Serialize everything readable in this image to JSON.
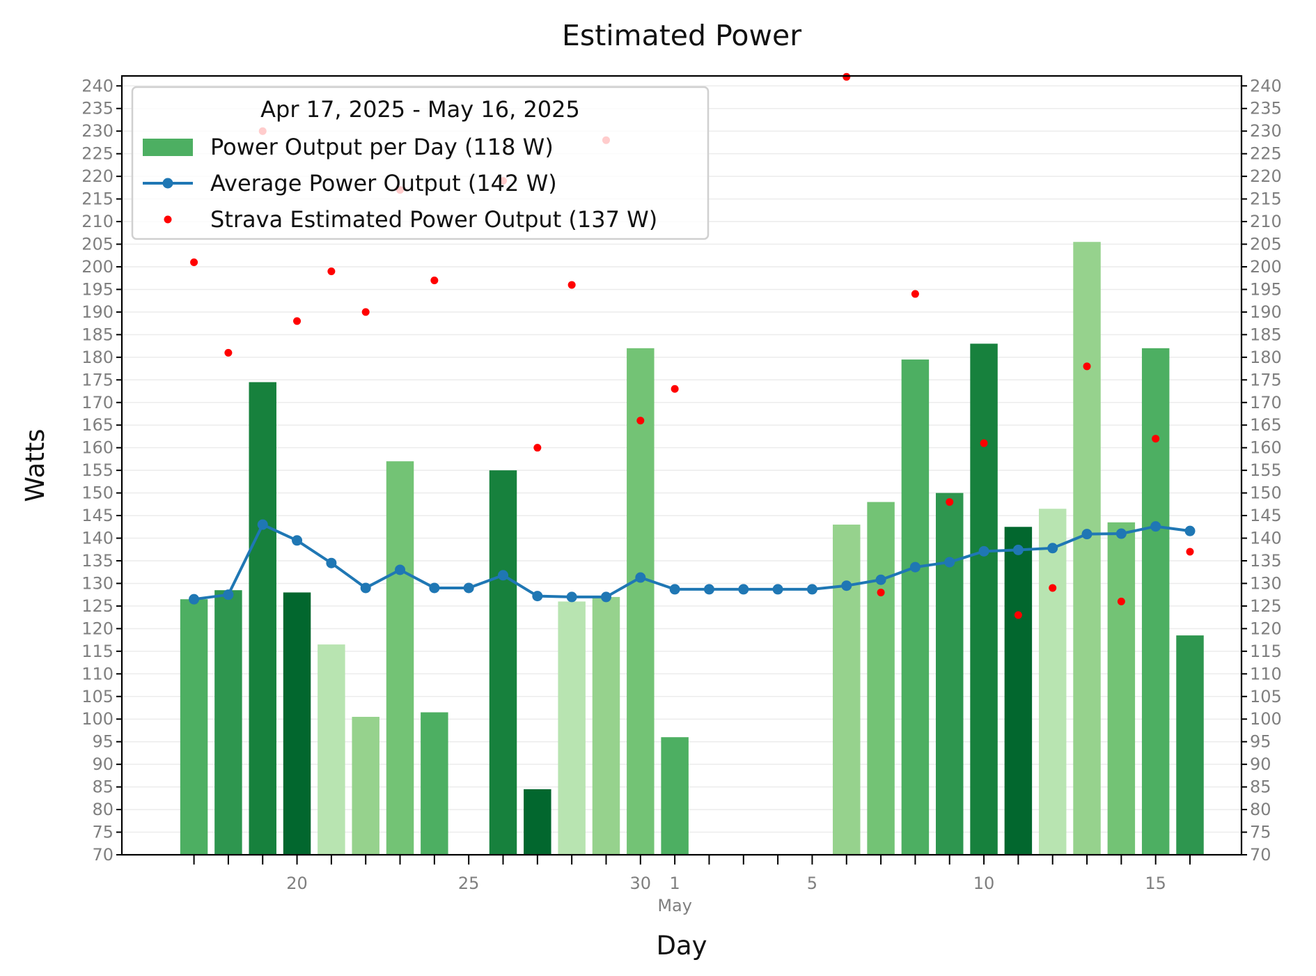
{
  "chart_data": {
    "type": "bar",
    "title": "Estimated Power",
    "xlabel": "Day",
    "ylabel": "Watts",
    "ylim": [
      70,
      240
    ],
    "yticks": [
      70,
      75,
      80,
      85,
      90,
      95,
      100,
      105,
      110,
      115,
      120,
      125,
      130,
      135,
      140,
      145,
      150,
      155,
      160,
      165,
      170,
      175,
      180,
      185,
      190,
      195,
      200,
      205,
      210,
      215,
      220,
      225,
      230,
      235,
      240
    ],
    "x": [
      "2025-04-17",
      "2025-04-18",
      "2025-04-19",
      "2025-04-20",
      "2025-04-21",
      "2025-04-22",
      "2025-04-23",
      "2025-04-24",
      "2025-04-25",
      "2025-04-26",
      "2025-04-27",
      "2025-04-28",
      "2025-04-29",
      "2025-04-30",
      "2025-05-01",
      "2025-05-02",
      "2025-05-03",
      "2025-05-04",
      "2025-05-05",
      "2025-05-06",
      "2025-05-07",
      "2025-05-08",
      "2025-05-09",
      "2025-05-10",
      "2025-05-11",
      "2025-05-12",
      "2025-05-13",
      "2025-05-14",
      "2025-05-15",
      "2025-05-16"
    ],
    "xtick_labels": [
      {
        "date": "2025-04-20",
        "label": "20"
      },
      {
        "date": "2025-04-25",
        "label": "25"
      },
      {
        "date": "2025-04-30",
        "label": "30"
      },
      {
        "date": "2025-05-01",
        "label": "1"
      },
      {
        "date": "2025-05-05",
        "label": "5"
      },
      {
        "date": "2025-05-10",
        "label": "10"
      },
      {
        "date": "2025-05-15",
        "label": "15"
      }
    ],
    "month_label": "May",
    "legend": {
      "title": "Apr 17, 2025 - May 16, 2025",
      "placement": "upper-left"
    },
    "series": [
      {
        "name": "Power Output per Day (118 W)",
        "type": "bar",
        "values": [
          126.5,
          128.5,
          174.5,
          128,
          116.5,
          100.5,
          157,
          101.5,
          null,
          155,
          84.5,
          126,
          127,
          182,
          96,
          null,
          null,
          null,
          null,
          143,
          148,
          179.5,
          150,
          183,
          142.5,
          146.5,
          205.5,
          143.5,
          182,
          118.5
        ],
        "colors": [
          "#4daf62",
          "#2e964f",
          "#17813d",
          "#02672e",
          "#b8e4b1",
          "#96d28d",
          "#73c375",
          "#4daf62",
          null,
          "#17813d",
          "#02672e",
          "#b8e4b1",
          "#96d28d",
          "#73c375",
          "#4daf62",
          null,
          null,
          null,
          null,
          "#96d28d",
          "#73c375",
          "#4daf62",
          "#2e964f",
          "#17813d",
          "#02672e",
          "#b8e4b1",
          "#96d28d",
          "#73c375",
          "#4daf62",
          "#2e964f"
        ],
        "legend_color": "#4daf62"
      },
      {
        "name": "Average Power Output (142 W)",
        "type": "line",
        "color": "#1f77b4",
        "values": [
          126.5,
          127.5,
          143,
          139.5,
          134.5,
          129,
          133,
          129,
          129,
          131.8,
          127.2,
          127,
          127,
          131.3,
          128.7,
          128.7,
          128.7,
          128.7,
          128.7,
          129.5,
          130.8,
          133.6,
          134.7,
          137.1,
          137.4,
          137.8,
          140.9,
          141,
          142.6,
          141.6
        ]
      },
      {
        "name": "Strava Estimated Power Output (137 W)",
        "type": "scatter",
        "color": "#ff0000",
        "values": [
          201,
          181,
          230,
          188,
          199,
          190,
          217,
          197,
          null,
          219,
          160,
          196,
          228,
          166,
          173,
          null,
          null,
          null,
          null,
          242,
          128,
          194,
          148,
          161,
          123,
          129,
          178,
          126,
          162,
          137
        ]
      }
    ]
  }
}
